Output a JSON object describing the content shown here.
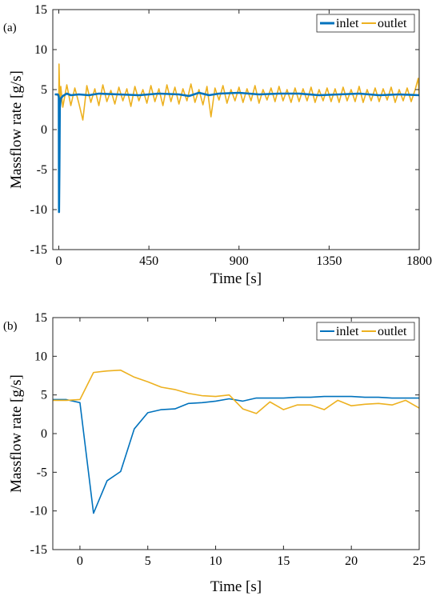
{
  "chart_data": [
    {
      "type": "line",
      "panel_label": "(a)",
      "xlabel": "Time [s]",
      "ylabel": "Massflow rate [g/s]",
      "xlim": [
        -30,
        1800
      ],
      "ylim": [
        -15,
        15
      ],
      "xticks": [
        0,
        450,
        900,
        1350,
        1800
      ],
      "yticks": [
        -15,
        -10,
        -5,
        0,
        5,
        10,
        15
      ],
      "grid": false,
      "legend_position": "top-right",
      "series": [
        {
          "name": "inlet",
          "color": "#0072BD",
          "x": [
            -20,
            -5,
            -1,
            0,
            1,
            3,
            5,
            10,
            20,
            40,
            60,
            100,
            150,
            200,
            300,
            400,
            500,
            600,
            650,
            700,
            750,
            800,
            900,
            1000,
            1100,
            1200,
            1300,
            1400,
            1500,
            1600,
            1700,
            1800
          ],
          "y": [
            4.4,
            4.4,
            4.2,
            4.0,
            -10.3,
            -4.9,
            2.7,
            3.9,
            4.2,
            4.5,
            4.3,
            4.4,
            4.3,
            4.5,
            4.4,
            4.3,
            4.5,
            4.4,
            4.2,
            4.6,
            4.3,
            4.5,
            4.6,
            4.4,
            4.5,
            4.5,
            4.3,
            4.4,
            4.5,
            4.3,
            4.4,
            4.3
          ]
        },
        {
          "name": "outlet",
          "color": "#EDB120",
          "x": [
            -20,
            -5,
            0,
            1,
            3,
            5,
            10,
            20,
            40,
            60,
            80,
            100,
            120,
            140,
            160,
            180,
            200,
            220,
            240,
            260,
            280,
            300,
            320,
            340,
            360,
            380,
            400,
            420,
            440,
            460,
            480,
            500,
            520,
            540,
            560,
            580,
            600,
            620,
            640,
            660,
            680,
            700,
            720,
            740,
            760,
            780,
            800,
            820,
            840,
            860,
            880,
            900,
            920,
            940,
            960,
            980,
            1000,
            1020,
            1040,
            1060,
            1080,
            1100,
            1120,
            1140,
            1160,
            1180,
            1200,
            1220,
            1240,
            1260,
            1280,
            1300,
            1320,
            1340,
            1360,
            1380,
            1400,
            1420,
            1440,
            1460,
            1480,
            1500,
            1520,
            1540,
            1560,
            1580,
            1600,
            1620,
            1640,
            1660,
            1680,
            1700,
            1720,
            1740,
            1760,
            1780,
            1795,
            1800
          ],
          "y": [
            4.4,
            4.3,
            4.4,
            8.2,
            6.0,
            3.2,
            5.4,
            2.8,
            5.6,
            3.0,
            5.2,
            3.3,
            1.2,
            5.5,
            3.4,
            5.1,
            3.0,
            5.6,
            3.5,
            4.9,
            3.2,
            5.3,
            3.6,
            5.1,
            2.9,
            5.4,
            3.6,
            5.0,
            3.3,
            5.5,
            3.5,
            5.1,
            3.0,
            5.6,
            3.5,
            5.3,
            3.2,
            5.1,
            3.6,
            5.7,
            3.4,
            5.0,
            3.1,
            5.4,
            1.6,
            5.2,
            3.7,
            5.5,
            3.3,
            5.0,
            3.6,
            5.3,
            3.4,
            5.1,
            3.6,
            5.5,
            3.3,
            5.0,
            3.7,
            5.2,
            3.5,
            5.4,
            3.6,
            5.0,
            3.4,
            5.2,
            3.5,
            5.1,
            3.6,
            5.3,
            3.4,
            5.0,
            3.6,
            5.2,
            3.5,
            5.1,
            3.4,
            5.3,
            3.6,
            5.0,
            3.5,
            5.4,
            3.4,
            5.0,
            3.6,
            5.2,
            3.5,
            5.1,
            3.7,
            5.3,
            3.4,
            5.0,
            3.6,
            5.2,
            3.5,
            5.0,
            6.4,
            4.2
          ]
        }
      ]
    },
    {
      "type": "line",
      "panel_label": "(b)",
      "xlabel": "Time [s]",
      "ylabel": "Massflow rate [g/s]",
      "xlim": [
        -2,
        25
      ],
      "ylim": [
        -15,
        15
      ],
      "xticks": [
        0,
        5,
        10,
        15,
        20,
        25
      ],
      "yticks": [
        -15,
        -10,
        -5,
        0,
        5,
        10,
        15
      ],
      "grid": false,
      "legend_position": "top-right",
      "series": [
        {
          "name": "inlet",
          "color": "#0072BD",
          "x": [
            -2,
            -1,
            0,
            1,
            2,
            3,
            4,
            5,
            6,
            7,
            8,
            9,
            10,
            11,
            12,
            13,
            14,
            15,
            16,
            17,
            18,
            19,
            20,
            21,
            22,
            23,
            24,
            25
          ],
          "y": [
            4.4,
            4.4,
            4.0,
            -10.3,
            -6.1,
            -4.9,
            0.6,
            2.7,
            3.1,
            3.2,
            3.9,
            4.0,
            4.2,
            4.5,
            4.2,
            4.6,
            4.6,
            4.6,
            4.7,
            4.7,
            4.8,
            4.8,
            4.8,
            4.7,
            4.7,
            4.6,
            4.6,
            4.6
          ]
        },
        {
          "name": "outlet",
          "color": "#EDB120",
          "x": [
            -2,
            -1,
            0,
            1,
            2,
            3,
            4,
            5,
            6,
            7,
            8,
            9,
            10,
            11,
            12,
            13,
            14,
            15,
            16,
            17,
            18,
            19,
            20,
            21,
            22,
            23,
            24,
            25
          ],
          "y": [
            4.3,
            4.3,
            4.4,
            7.9,
            8.1,
            8.2,
            7.3,
            6.7,
            6.0,
            5.7,
            5.2,
            4.9,
            4.8,
            5.0,
            3.2,
            2.6,
            4.1,
            3.1,
            3.7,
            3.7,
            3.1,
            4.3,
            3.6,
            3.8,
            3.9,
            3.7,
            4.3,
            3.3
          ]
        }
      ]
    }
  ]
}
